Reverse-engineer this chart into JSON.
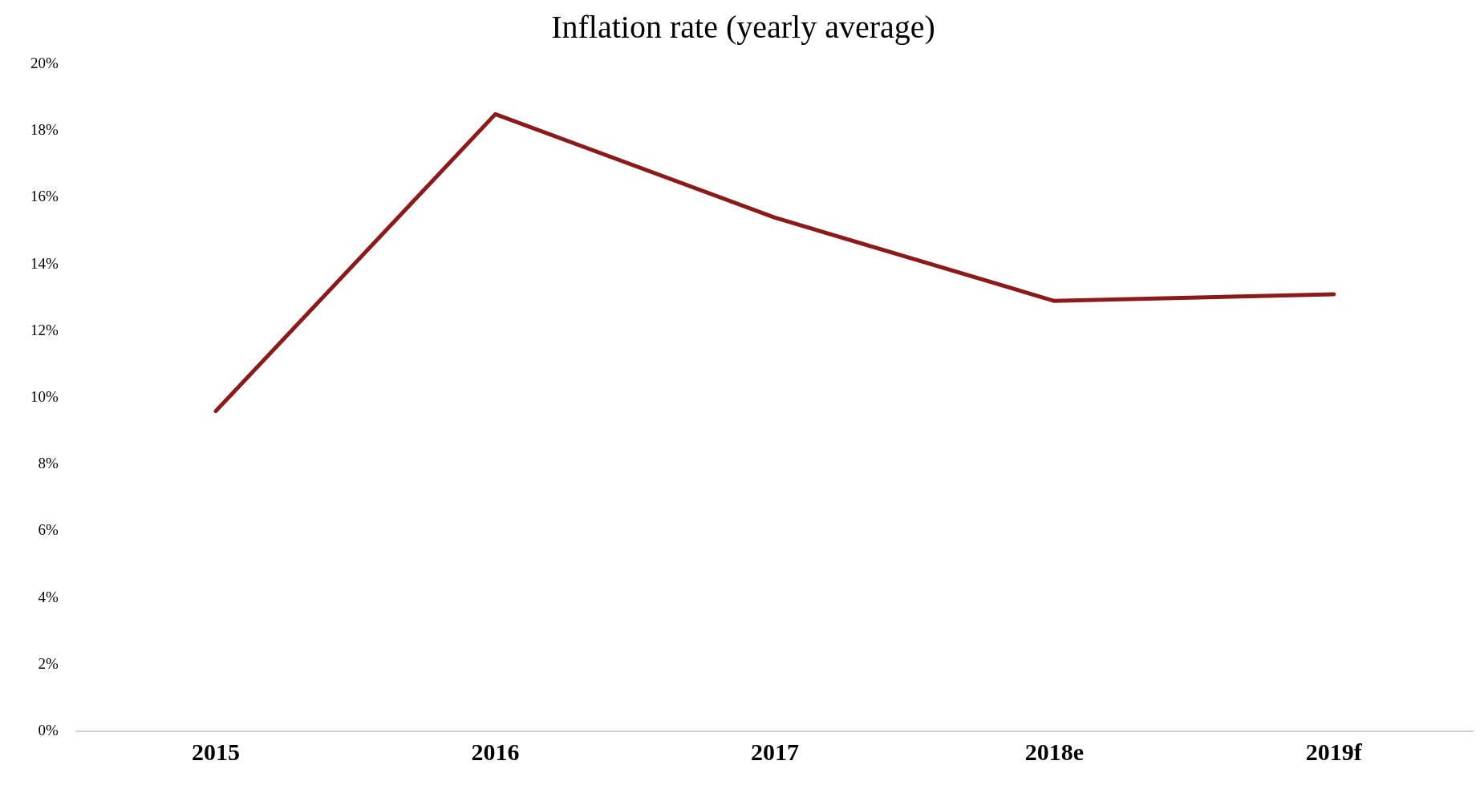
{
  "chart_data": {
    "type": "line",
    "title": "Inflation rate (yearly average)",
    "categories": [
      "2015",
      "2016",
      "2017",
      "2018e",
      "2019f"
    ],
    "series": [
      {
        "color": "#8b1a1a",
        "values": [
          9.6,
          18.5,
          15.4,
          12.9,
          13.1
        ]
      }
    ],
    "ylim": [
      0,
      20
    ],
    "yticks": [
      {
        "value": 0,
        "label": "0%"
      },
      {
        "value": 2,
        "label": "2%"
      },
      {
        "value": 4,
        "label": "4%"
      },
      {
        "value": 6,
        "label": "6%"
      },
      {
        "value": 8,
        "label": "8%"
      },
      {
        "value": 10,
        "label": "10%"
      },
      {
        "value": 12,
        "label": "12%"
      },
      {
        "value": 14,
        "label": "14%"
      },
      {
        "value": 16,
        "label": "16%"
      },
      {
        "value": 18,
        "label": "18%"
      },
      {
        "value": 20,
        "label": "20%"
      }
    ],
    "marker": "none",
    "line_style": "solid",
    "legend": false
  }
}
